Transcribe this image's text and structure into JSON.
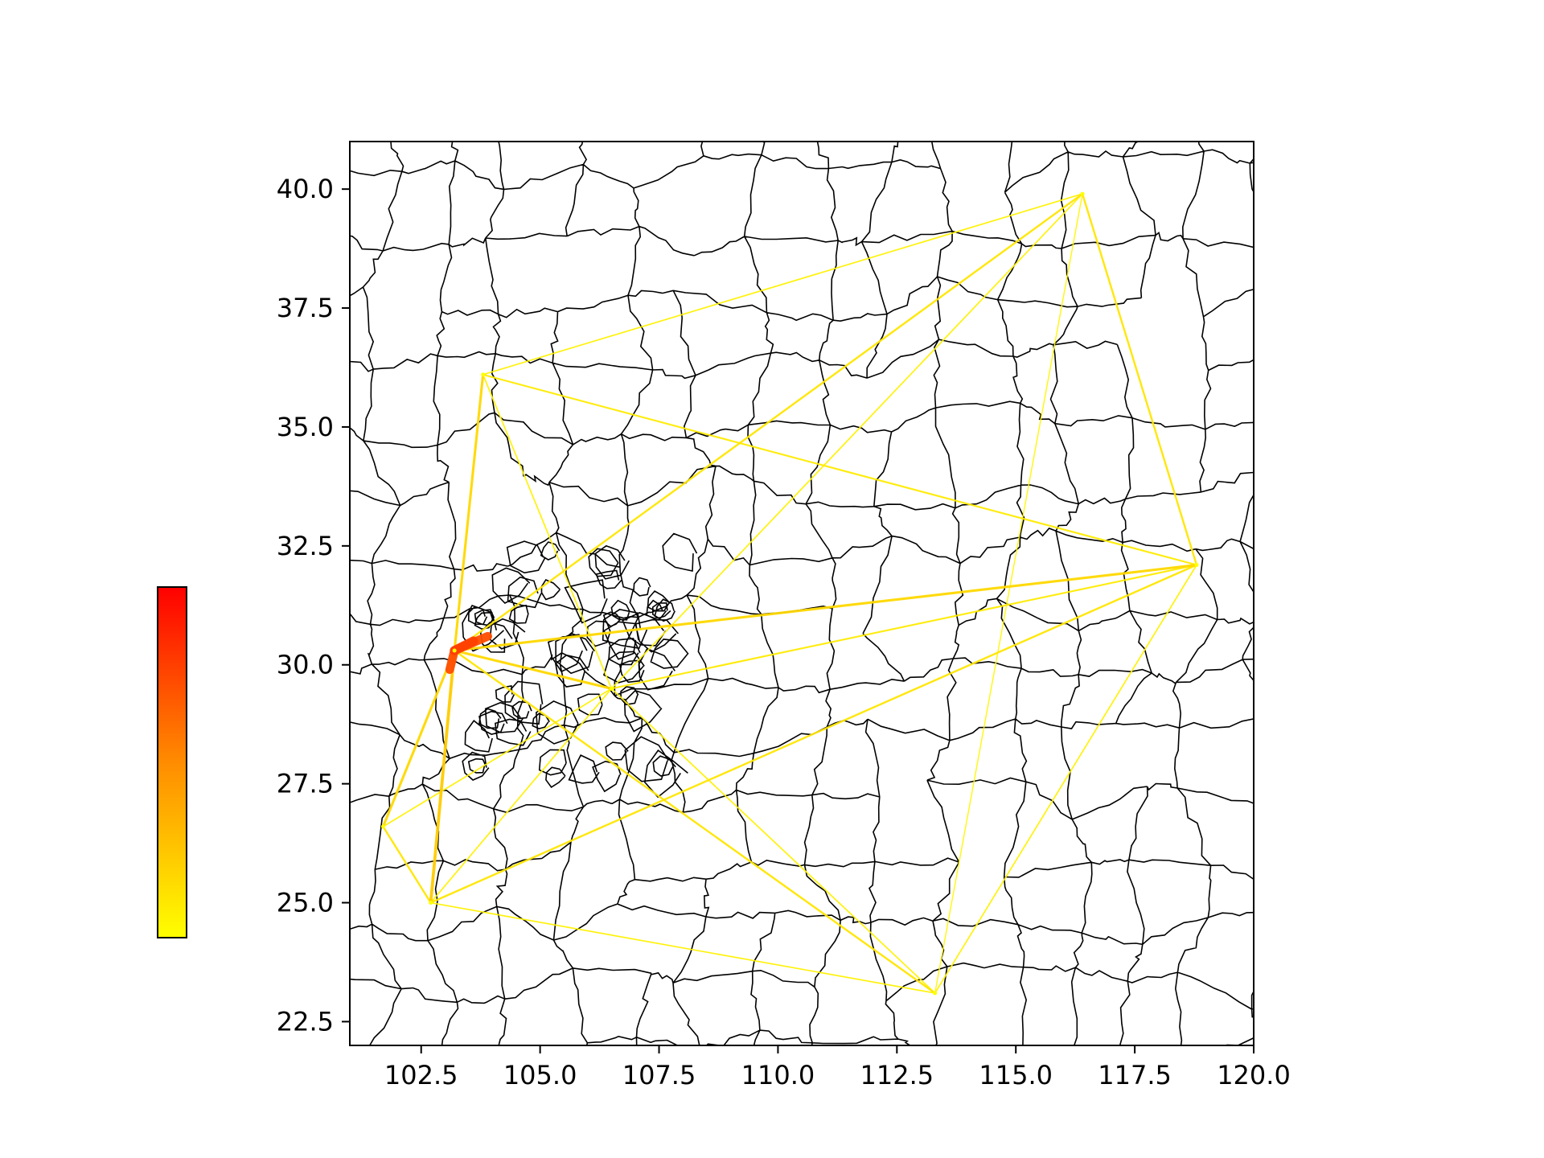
{
  "chart_data": {
    "type": "map",
    "title": "",
    "xlabel": "",
    "ylabel": "",
    "xlim": [
      101.0,
      120.0
    ],
    "ylim": [
      22.0,
      41.0
    ],
    "xticks": [
      102.5,
      105.0,
      107.5,
      110.0,
      112.5,
      115.0,
      117.5,
      120.0
    ],
    "yticks": [
      22.5,
      25.0,
      27.5,
      30.0,
      32.5,
      35.0,
      37.5,
      40.0
    ],
    "xtick_labels": [
      "102.5",
      "105.0",
      "107.5",
      "110.0",
      "112.5",
      "115.0",
      "117.5",
      "120.0"
    ],
    "ytick_labels": [
      "22.5",
      "25.0",
      "27.5",
      "30.0",
      "32.5",
      "35.0",
      "37.5",
      "40.0"
    ],
    "basemap": "prefecture-level administrative boundaries of central / eastern China",
    "colorbar": {
      "placement": "left",
      "cmap_low": "#ffff00",
      "cmap_high": "#ff0000",
      "labels": []
    },
    "nodes": [
      {
        "lon": 103.2,
        "lat": 30.3
      },
      {
        "lon": 103.8,
        "lat": 36.1
      },
      {
        "lon": 116.4,
        "lat": 39.9
      },
      {
        "lon": 118.8,
        "lat": 32.1
      },
      {
        "lon": 113.3,
        "lat": 23.1
      },
      {
        "lon": 102.7,
        "lat": 25.0
      },
      {
        "lon": 101.7,
        "lat": 26.6
      },
      {
        "lon": 106.5,
        "lat": 29.5
      }
    ],
    "flows": [
      {
        "from": [
          103.2,
          30.3
        ],
        "to": [
          103.8,
          36.1
        ],
        "intensity": 0.15
      },
      {
        "from": [
          103.2,
          30.3
        ],
        "to": [
          116.4,
          39.9
        ],
        "intensity": 0.1
      },
      {
        "from": [
          103.2,
          30.3
        ],
        "to": [
          118.8,
          32.1
        ],
        "intensity": 0.15
      },
      {
        "from": [
          103.2,
          30.3
        ],
        "to": [
          113.3,
          23.1
        ],
        "intensity": 0.1
      },
      {
        "from": [
          103.2,
          30.3
        ],
        "to": [
          102.7,
          25.0
        ],
        "intensity": 0.2
      },
      {
        "from": [
          103.2,
          30.3
        ],
        "to": [
          101.7,
          26.6
        ],
        "intensity": 0.15
      },
      {
        "from": [
          103.2,
          30.3
        ],
        "to": [
          106.5,
          29.5
        ],
        "intensity": 0.15
      },
      {
        "from": [
          103.8,
          36.1
        ],
        "to": [
          116.4,
          39.9
        ],
        "intensity": 0.05
      },
      {
        "from": [
          103.8,
          36.1
        ],
        "to": [
          118.8,
          32.1
        ],
        "intensity": 0.08
      },
      {
        "from": [
          103.8,
          36.1
        ],
        "to": [
          106.5,
          29.5
        ],
        "intensity": 0.05
      },
      {
        "from": [
          116.4,
          39.9
        ],
        "to": [
          118.8,
          32.1
        ],
        "intensity": 0.1
      },
      {
        "from": [
          116.4,
          39.9
        ],
        "to": [
          106.5,
          29.5
        ],
        "intensity": 0.05
      },
      {
        "from": [
          116.4,
          39.9
        ],
        "to": [
          113.3,
          23.1
        ],
        "intensity": 0.03
      },
      {
        "from": [
          118.8,
          32.1
        ],
        "to": [
          106.5,
          29.5
        ],
        "intensity": 0.08
      },
      {
        "from": [
          118.8,
          32.1
        ],
        "to": [
          102.7,
          25.0
        ],
        "intensity": 0.1
      },
      {
        "from": [
          118.8,
          32.1
        ],
        "to": [
          113.3,
          23.1
        ],
        "intensity": 0.05
      },
      {
        "from": [
          113.3,
          23.1
        ],
        "to": [
          102.7,
          25.0
        ],
        "intensity": 0.05
      },
      {
        "from": [
          113.3,
          23.1
        ],
        "to": [
          106.5,
          29.5
        ],
        "intensity": 0.05
      },
      {
        "from": [
          102.7,
          25.0
        ],
        "to": [
          101.7,
          26.6
        ],
        "intensity": 0.1
      },
      {
        "from": [
          102.7,
          25.0
        ],
        "to": [
          106.5,
          29.5
        ],
        "intensity": 0.05
      },
      {
        "from": [
          101.7,
          26.6
        ],
        "to": [
          106.5,
          29.5
        ],
        "intensity": 0.05
      },
      {
        "from": [
          103.2,
          30.3
        ],
        "to": [
          103.6,
          30.5
        ],
        "intensity": 0.75
      },
      {
        "from": [
          103.2,
          30.3
        ],
        "to": [
          103.1,
          29.9
        ],
        "intensity": 0.7
      },
      {
        "from": [
          103.2,
          30.3
        ],
        "to": [
          103.9,
          30.6
        ],
        "intensity": 0.7
      }
    ]
  }
}
